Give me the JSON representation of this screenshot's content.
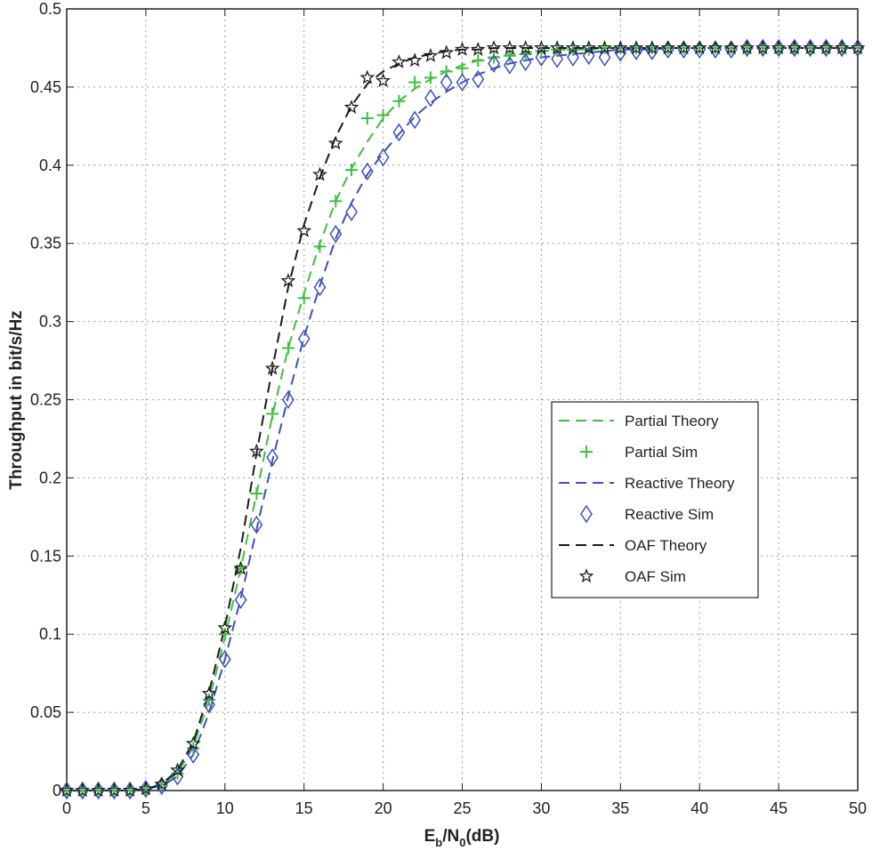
{
  "chart_data": {
    "type": "line",
    "title": "",
    "xlabel": "E_b/N_0(dB)",
    "xlabel_parts": {
      "e": "E",
      "b": "b",
      "slash_n": "/N",
      "zero": "0",
      "unit": "(dB)"
    },
    "ylabel": "Throughput in bit/s/Hz",
    "xlim": [
      0,
      50
    ],
    "ylim": [
      0,
      0.5
    ],
    "xticks": [
      "0",
      "5",
      "10",
      "15",
      "20",
      "25",
      "30",
      "35",
      "40",
      "45",
      "50"
    ],
    "yticks": [
      "0",
      "0.05",
      "0.1",
      "0.15",
      "0.2",
      "0.25",
      "0.3",
      "0.35",
      "0.4",
      "0.45",
      "0.5"
    ],
    "grid": true,
    "legend_position": "right-center",
    "x": [
      0,
      1,
      2,
      3,
      4,
      5,
      6,
      7,
      8,
      9,
      10,
      11,
      12,
      13,
      14,
      15,
      16,
      17,
      18,
      19,
      20,
      21,
      22,
      23,
      24,
      25,
      26,
      27,
      28,
      29,
      30,
      31,
      32,
      33,
      34,
      35,
      36,
      37,
      38,
      39,
      40,
      41,
      42,
      43,
      44,
      45,
      46,
      47,
      48,
      49,
      50
    ],
    "series": [
      {
        "name": "Partial Theory",
        "style": "dashed",
        "color": "#3fbf3f",
        "values": [
          0,
          0,
          0,
          0,
          0,
          0.001,
          0.004,
          0.011,
          0.028,
          0.058,
          0.098,
          0.142,
          0.19,
          0.24,
          0.283,
          0.318,
          0.35,
          0.377,
          0.398,
          0.415,
          0.43,
          0.441,
          0.449,
          0.455,
          0.46,
          0.464,
          0.467,
          0.469,
          0.471,
          0.472,
          0.473,
          0.474,
          0.474,
          0.474,
          0.475,
          0.475,
          0.475,
          0.475,
          0.475,
          0.475,
          0.475,
          0.475,
          0.475,
          0.475,
          0.475,
          0.475,
          0.475,
          0.475,
          0.475,
          0.475,
          0.475
        ]
      },
      {
        "name": "Partial Sim",
        "marker": "plus",
        "color": "#3fbf3f",
        "values": [
          0,
          0,
          0,
          0,
          0,
          0.001,
          0.004,
          0.011,
          0.027,
          0.058,
          0.1,
          0.142,
          0.19,
          0.241,
          0.283,
          0.315,
          0.348,
          0.377,
          0.397,
          0.43,
          0.432,
          0.441,
          0.453,
          0.456,
          0.46,
          0.462,
          0.467,
          0.469,
          0.47,
          0.471,
          0.473,
          0.474,
          0.474,
          0.474,
          0.475,
          0.475,
          0.475,
          0.475,
          0.475,
          0.475,
          0.475,
          0.475,
          0.475,
          0.475,
          0.475,
          0.475,
          0.475,
          0.475,
          0.475,
          0.475,
          0.475
        ]
      },
      {
        "name": "Reactive Theory",
        "style": "dashed",
        "color": "#3f4fbf",
        "values": [
          0,
          0,
          0,
          0,
          0,
          0.001,
          0.003,
          0.009,
          0.023,
          0.05,
          0.084,
          0.123,
          0.167,
          0.211,
          0.252,
          0.29,
          0.323,
          0.353,
          0.376,
          0.394,
          0.408,
          0.42,
          0.431,
          0.44,
          0.447,
          0.453,
          0.458,
          0.462,
          0.465,
          0.467,
          0.469,
          0.47,
          0.471,
          0.472,
          0.473,
          0.474,
          0.474,
          0.474,
          0.475,
          0.475,
          0.475,
          0.475,
          0.475,
          0.475,
          0.475,
          0.475,
          0.475,
          0.475,
          0.475,
          0.475,
          0.475
        ]
      },
      {
        "name": "Reactive Sim",
        "marker": "diamond",
        "color": "#3f4fbf",
        "values": [
          0,
          0,
          0,
          0,
          0,
          0.001,
          0.003,
          0.009,
          0.023,
          0.055,
          0.084,
          0.122,
          0.17,
          0.213,
          0.25,
          0.289,
          0.322,
          0.356,
          0.37,
          0.396,
          0.405,
          0.421,
          0.429,
          0.443,
          0.453,
          0.453,
          0.455,
          0.465,
          0.464,
          0.466,
          0.469,
          0.468,
          0.469,
          0.47,
          0.469,
          0.472,
          0.473,
          0.473,
          0.474,
          0.474,
          0.474,
          0.474,
          0.474,
          0.475,
          0.475,
          0.475,
          0.475,
          0.475,
          0.475,
          0.475,
          0.475
        ]
      },
      {
        "name": "OAF Theory",
        "style": "dashed",
        "color": "#1a1a1a",
        "values": [
          0,
          0,
          0,
          0,
          0,
          0.001,
          0.004,
          0.013,
          0.031,
          0.063,
          0.105,
          0.155,
          0.216,
          0.27,
          0.322,
          0.362,
          0.392,
          0.418,
          0.438,
          0.452,
          0.46,
          0.465,
          0.469,
          0.471,
          0.473,
          0.474,
          0.474,
          0.475,
          0.475,
          0.475,
          0.475,
          0.475,
          0.475,
          0.475,
          0.475,
          0.475,
          0.475,
          0.475,
          0.475,
          0.475,
          0.475,
          0.475,
          0.475,
          0.475,
          0.475,
          0.475,
          0.475,
          0.475,
          0.475,
          0.475,
          0.475
        ]
      },
      {
        "name": "OAF Sim",
        "marker": "star",
        "color": "#1a1a1a",
        "values": [
          0,
          0,
          0,
          0,
          0,
          0.001,
          0.004,
          0.013,
          0.03,
          0.062,
          0.104,
          0.142,
          0.217,
          0.27,
          0.326,
          0.358,
          0.394,
          0.414,
          0.437,
          0.456,
          0.454,
          0.466,
          0.467,
          0.47,
          0.472,
          0.474,
          0.474,
          0.475,
          0.475,
          0.475,
          0.475,
          0.475,
          0.475,
          0.475,
          0.475,
          0.475,
          0.475,
          0.475,
          0.475,
          0.475,
          0.475,
          0.475,
          0.475,
          0.475,
          0.475,
          0.475,
          0.475,
          0.475,
          0.475,
          0.475,
          0.475
        ]
      }
    ]
  }
}
